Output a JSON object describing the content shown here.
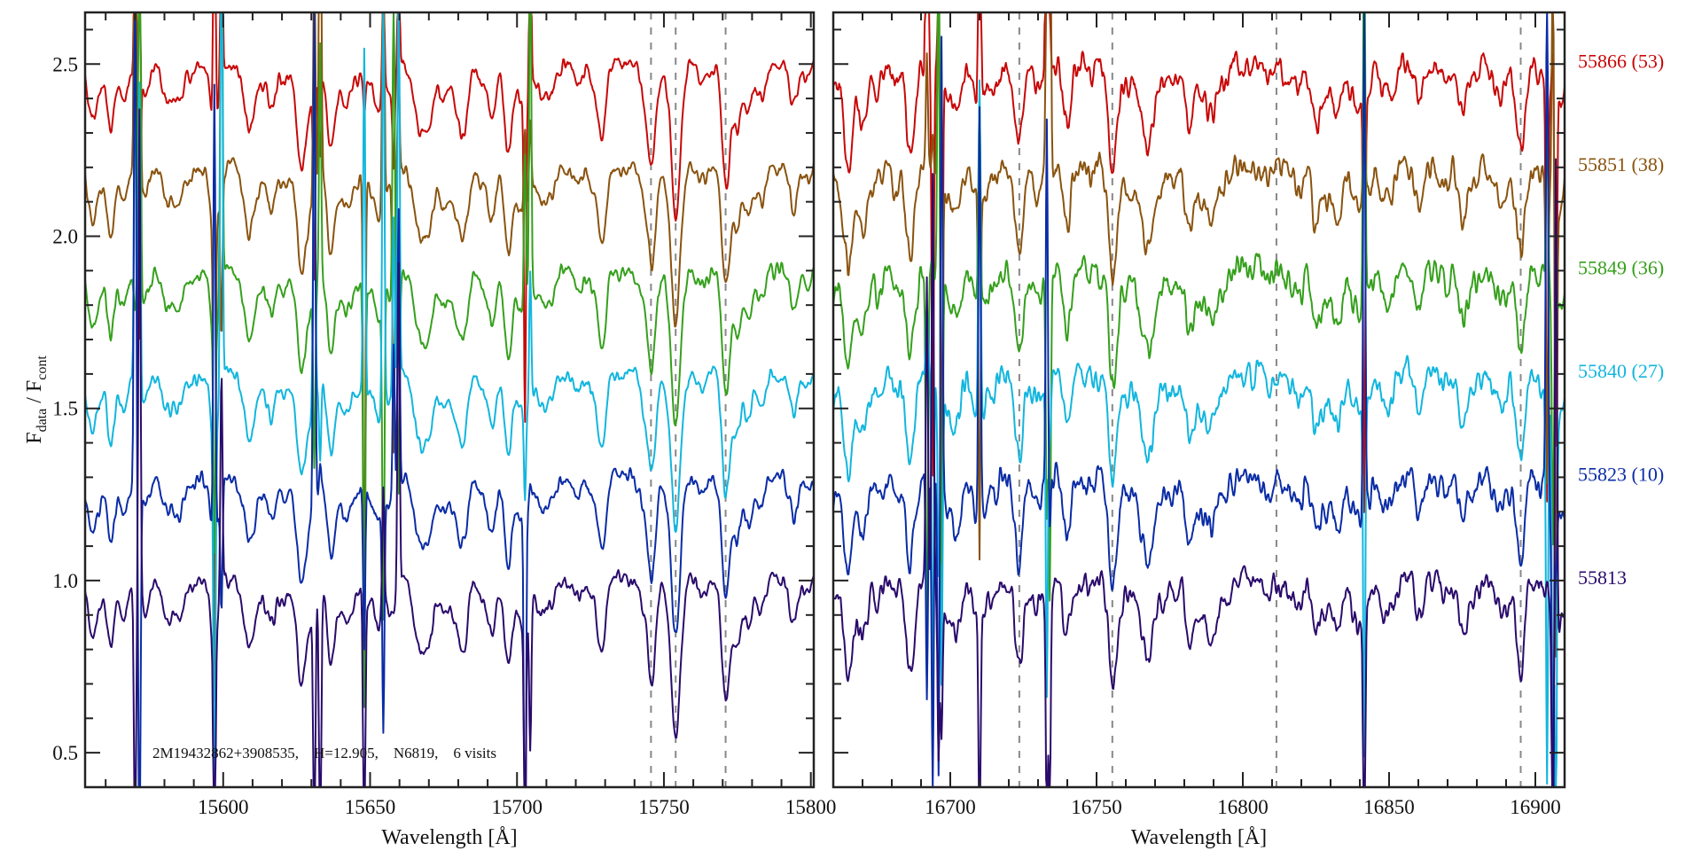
{
  "chart_data": {
    "type": "line",
    "title": "",
    "ylabel": {
      "f1": "F",
      "sub1": "data",
      "sep": " / F",
      "sub2": "cont"
    },
    "ylim": [
      0.4,
      2.65
    ],
    "yticks_major": [
      "0.5",
      "1.0",
      "1.5",
      "2.0",
      "2.5"
    ],
    "ytick_minor_step": 0.1,
    "annotation": "2M19432862+3908535,    H=12.905,    N6819,    6 visits",
    "grid": false,
    "panels": [
      {
        "xlabel": "Wavelength [Å]",
        "xlim": [
          15553,
          15801
        ],
        "xticks": [
          "15600",
          "15650",
          "15700",
          "15750",
          "15800"
        ],
        "xtick_minor_step": 10,
        "dashed_lines": [
          15745.6,
          15754,
          15771
        ],
        "noise": 0.018,
        "lines": [
          [
            15561.8,
            0.15
          ],
          [
            15566,
            0.08
          ],
          [
            15580,
            0.06
          ],
          [
            15597,
            0.2
          ],
          [
            15608.8,
            0.13
          ],
          [
            15616,
            0.06
          ],
          [
            15626.4,
            0.2
          ],
          [
            15636.6,
            0.2
          ],
          [
            15643,
            0.05
          ],
          [
            15653,
            0.1
          ],
          [
            15667,
            0.15
          ],
          [
            15670,
            0.1
          ],
          [
            15682,
            0.12
          ],
          [
            15691.5,
            0.15
          ],
          [
            15697,
            0.25
          ],
          [
            15712,
            0.06
          ],
          [
            15728.8,
            0.18
          ],
          [
            15745.7,
            0.25
          ],
          [
            15754,
            0.3
          ],
          [
            15771,
            0.3
          ],
          [
            15775,
            0.18
          ],
          [
            15779,
            0.08
          ],
          [
            15783,
            0.1
          ],
          [
            15794,
            0.1
          ]
        ],
        "telluric": [
          15570,
          15571.5,
          15597,
          15599.4,
          15631,
          15633,
          15648,
          15654.5,
          15658,
          15659.7,
          15702.7,
          15704.5
        ]
      },
      {
        "xlabel": "Wavelength [Å]",
        "xlim": [
          16660,
          16910
        ],
        "xticks": [
          "16700",
          "16750",
          "16800",
          "16850",
          "16900"
        ],
        "xtick_minor_step": 10,
        "dashed_lines": [
          16723.6,
          16755.4,
          16811.5,
          16895
        ],
        "noise": 0.032,
        "lines": [
          [
            16665,
            0.25
          ],
          [
            16670,
            0.15
          ],
          [
            16686,
            0.22
          ],
          [
            16712,
            0.08
          ],
          [
            16723.6,
            0.25
          ],
          [
            16740,
            0.1
          ],
          [
            16755.5,
            0.32
          ],
          [
            16768,
            0.08
          ],
          [
            16790,
            0.07
          ],
          [
            16825,
            0.15
          ],
          [
            16833,
            0.12
          ],
          [
            16860,
            0.08
          ],
          [
            16875,
            0.08
          ],
          [
            16895,
            0.15
          ]
        ],
        "telluric": [
          16692,
          16694,
          16696,
          16697,
          16710,
          16733,
          16734,
          16841.5,
          16904,
          16906,
          16907
        ]
      }
    ],
    "series": [
      {
        "name": "55813",
        "label": "55813",
        "offset": 0.0,
        "color": "#2a0b6c"
      },
      {
        "name": "55823",
        "label": "55823 (10)",
        "offset": 0.3,
        "color": "#0a2ca6"
      },
      {
        "name": "55840",
        "label": "55840 (27)",
        "offset": 0.6,
        "color": "#12b6de"
      },
      {
        "name": "55849",
        "label": "55849 (36)",
        "offset": 0.9,
        "color": "#35a01c"
      },
      {
        "name": "55851",
        "label": "55851 (38)",
        "offset": 1.2,
        "color": "#8a530e"
      },
      {
        "name": "55866",
        "label": "55866 (53)",
        "offset": 1.5,
        "color": "#c80808"
      }
    ]
  }
}
